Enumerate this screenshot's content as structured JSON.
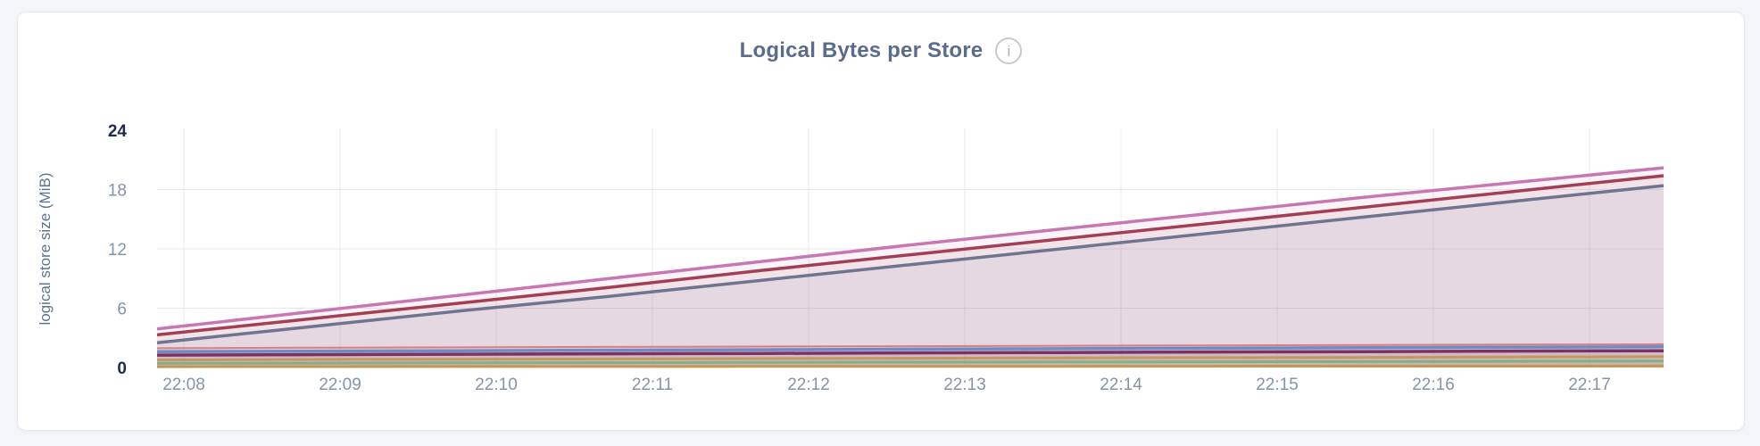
{
  "page": {
    "background_color": "#F4F5F8"
  },
  "card": {
    "background_color": "#FFFFFF",
    "border_color": "#E7E7EA"
  },
  "header": {
    "title": "Logical Bytes per Store",
    "title_color": "#5A6C8C",
    "info_glyph": "i"
  },
  "chart_data": {
    "type": "area",
    "title": "Logical Bytes per Store",
    "xlabel": "",
    "ylabel": "logical store size (MiB)",
    "ylim": [
      0,
      24
    ],
    "y_ticks": [
      0,
      6,
      12,
      18,
      24
    ],
    "y_emphasized_ticks": [
      0,
      24
    ],
    "y_gridlines": [
      6,
      12,
      18
    ],
    "x_ticks": [
      "22:08",
      "22:09",
      "22:10",
      "22:11",
      "22:12",
      "22:13",
      "22:14",
      "22:15",
      "22:16",
      "22:17"
    ],
    "x_range": [
      "22:07:50",
      "22:17:30"
    ],
    "samples_evenly_spaced": true,
    "grid": true,
    "legend_position": "none",
    "fill_opacity": 0.09,
    "colors": {
      "gridline": "#E8E8E8",
      "tick_label": "#8593AA",
      "tick_label_emphasis": "#1E2B4D",
      "axis_title": "#5E7191"
    },
    "series": [
      {
        "id": "series-1",
        "color": "#C778B4",
        "width": 3.5,
        "values": [
          3.9,
          5.6,
          7.3,
          9.0,
          10.7,
          12.4,
          14.0,
          15.6,
          17.2,
          18.7,
          20.2
        ]
      },
      {
        "id": "series-2",
        "color": "#A23F55",
        "width": 3.5,
        "values": [
          3.3,
          4.9,
          6.5,
          8.1,
          9.8,
          11.4,
          13.0,
          14.6,
          16.2,
          17.8,
          19.4
        ]
      },
      {
        "id": "series-3",
        "color": "#6F7490",
        "width": 3.5,
        "values": [
          2.5,
          4.1,
          5.7,
          7.2,
          8.8,
          10.4,
          12.0,
          13.6,
          15.2,
          16.8,
          18.4
        ]
      },
      {
        "id": "series-4",
        "color": "#DB7D85",
        "width": 2,
        "values": [
          1.95,
          2.0,
          2.04,
          2.08,
          2.12,
          2.16,
          2.2,
          2.24,
          2.28,
          2.32,
          2.35
        ]
      },
      {
        "id": "series-5",
        "color": "#6C8DC4",
        "width": 3.5,
        "values": [
          1.6,
          1.65,
          1.7,
          1.75,
          1.8,
          1.85,
          1.9,
          1.95,
          2.0,
          2.05,
          2.1
        ]
      },
      {
        "id": "series-6",
        "color": "#7E3160",
        "width": 3.5,
        "values": [
          1.25,
          1.3,
          1.34,
          1.39,
          1.43,
          1.48,
          1.52,
          1.57,
          1.61,
          1.66,
          1.7
        ]
      },
      {
        "id": "series-7",
        "color": "#C29A5B",
        "width": 3,
        "values": [
          0.78,
          0.81,
          0.84,
          0.87,
          0.9,
          0.94,
          0.97,
          1.0,
          1.03,
          1.07,
          1.1
        ]
      },
      {
        "id": "series-8",
        "color": "#83AF84",
        "width": 3,
        "values": [
          0.42,
          0.44,
          0.47,
          0.49,
          0.51,
          0.54,
          0.56,
          0.58,
          0.6,
          0.63,
          0.65
        ]
      },
      {
        "id": "series-9",
        "color": "#C49851",
        "width": 3,
        "values": [
          0.08,
          0.09,
          0.1,
          0.1,
          0.11,
          0.12,
          0.12,
          0.13,
          0.14,
          0.14,
          0.15
        ]
      }
    ]
  }
}
